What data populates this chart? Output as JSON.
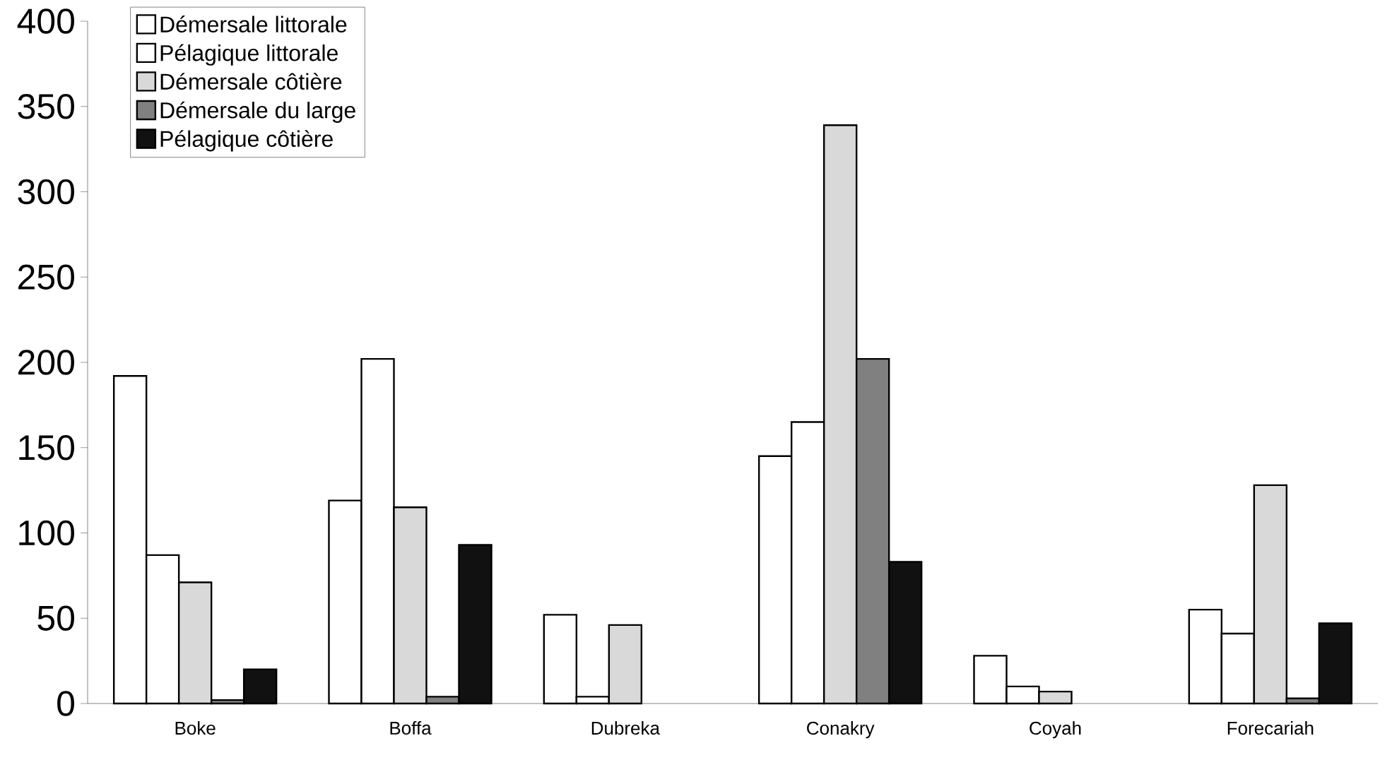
{
  "chart_data": {
    "type": "bar",
    "categories": [
      "Boke",
      "Boffa",
      "Dubreka",
      "Conakry",
      "Coyah",
      "Forecariah"
    ],
    "series": [
      {
        "name": "Démersale littorale",
        "color": "#ffffff",
        "values": [
          192,
          119,
          52,
          145,
          28,
          55
        ]
      },
      {
        "name": "Pélagique littorale",
        "color": "#ffffff",
        "values": [
          87,
          202,
          4,
          165,
          10,
          41
        ]
      },
      {
        "name": "Démersale côtière",
        "color": "#d9d9d9",
        "values": [
          71,
          115,
          46,
          339,
          7,
          128
        ]
      },
      {
        "name": "Démersale du large",
        "color": "#808080",
        "values": [
          2,
          4,
          null,
          202,
          null,
          3
        ]
      },
      {
        "name": "Pélagique côtière",
        "color": "#111111",
        "values": [
          20,
          93,
          null,
          83,
          null,
          47
        ]
      }
    ],
    "ylim": [
      0,
      400
    ],
    "yticks": [
      0,
      50,
      100,
      150,
      200,
      250,
      300,
      350,
      400
    ],
    "grid": false,
    "legend": "top left"
  }
}
